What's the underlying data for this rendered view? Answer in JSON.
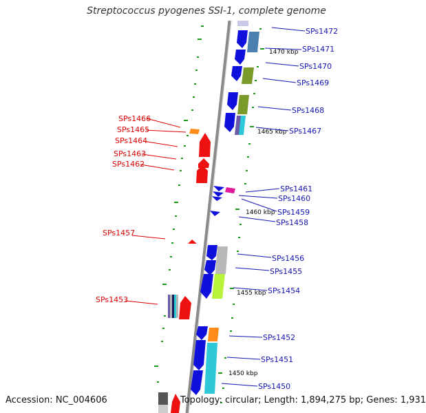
{
  "title": "Streptococcus pyogenes SSI-1, complete genome",
  "accession": "Accession: NC_004606",
  "summary": "Topology: circular; Length: 1,894,275 bp; Genes: 1,931",
  "colors": {
    "blue": "#1010dd",
    "red": "#ee1111",
    "olive": "#7a9a2a",
    "steel": "#4a7fb0",
    "cyan": "#2ec8d8",
    "orange": "#ff8c1a",
    "magenta": "#e0189a",
    "lime": "#b8f23a",
    "grey": "#b8b8b8",
    "tick": "#1a9a1a",
    "backbone": "#8a8a8a"
  },
  "kbp_ticks": [
    "1470 kbp",
    "1465 kbp",
    "1460 kbp",
    "1455 kbp",
    "1450 kbp"
  ],
  "genes_left": [
    "SPs1466",
    "SPs1465",
    "SPs1464",
    "SPs1463",
    "SPs1462",
    "SPs1457",
    "SPs1453"
  ],
  "genes_right": [
    "SPs1472",
    "SPs1471",
    "SPs1470",
    "SPs1469",
    "SPs1468",
    "SPs1467",
    "SPs1461",
    "SPs1460",
    "SPs1459",
    "SPs1458",
    "SPs1456",
    "SPs1455",
    "SPs1454",
    "SPs1452",
    "SPs1451",
    "SPs1450"
  ]
}
